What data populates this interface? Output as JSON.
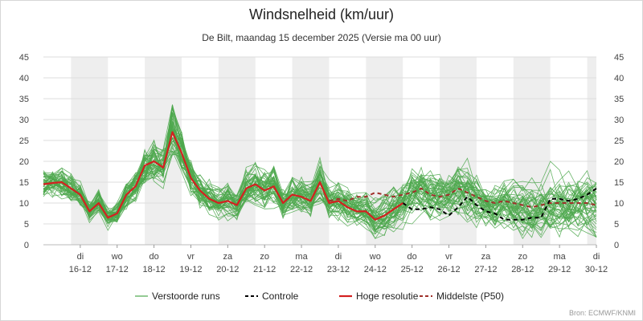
{
  "chart_data": {
    "type": "line",
    "title": "Windsnelheid (km/uur)",
    "subtitle": "De Bilt, maandag 15 december 2025 (Versie ma 00 uur)",
    "credit": "Bron: ECMWF/KNMI",
    "ylim": [
      0,
      45
    ],
    "yticks": [
      0,
      5,
      10,
      15,
      20,
      25,
      30,
      35,
      40,
      45
    ],
    "grid": true,
    "legend_position": "bottom",
    "x_day_labels": [
      {
        "day": "di",
        "date": "16-12",
        "x": 1
      },
      {
        "day": "wo",
        "date": "17-12",
        "x": 2
      },
      {
        "day": "do",
        "date": "18-12",
        "x": 3
      },
      {
        "day": "vr",
        "date": "19-12",
        "x": 4
      },
      {
        "day": "za",
        "date": "20-12",
        "x": 5
      },
      {
        "day": "zo",
        "date": "21-12",
        "x": 6
      },
      {
        "day": "ma",
        "date": "22-12",
        "x": 7
      },
      {
        "day": "di",
        "date": "23-12",
        "x": 8
      },
      {
        "day": "wo",
        "date": "24-12",
        "x": 9
      },
      {
        "day": "do",
        "date": "25-12",
        "x": 10
      },
      {
        "day": "vr",
        "date": "26-12",
        "x": 11
      },
      {
        "day": "za",
        "date": "27-12",
        "x": 12
      },
      {
        "day": "zo",
        "date": "28-12",
        "x": 13
      },
      {
        "day": "ma",
        "date": "29-12",
        "x": 14
      },
      {
        "day": "di",
        "date": "30-12",
        "x": 15
      }
    ],
    "shaded_days": [
      [
        0.75,
        1.75
      ],
      [
        2.75,
        3.75
      ],
      [
        4.75,
        5.75
      ],
      [
        6.75,
        7.75
      ],
      [
        8.75,
        9.75
      ],
      [
        10.75,
        11.75
      ],
      [
        12.75,
        13.75
      ],
      [
        14.75,
        15.0
      ]
    ],
    "x_start": 0.0,
    "x_end": 15.0,
    "series": [
      {
        "name": "Verstoorde runs",
        "color": "#4ea84e",
        "dash": "none",
        "width": 0.9
      },
      {
        "name": "Controle",
        "color": "#000000",
        "dash": "5,4",
        "width": 2
      },
      {
        "name": "Hoge resolutie",
        "color": "#d42020",
        "dash": "none",
        "width": 2.2
      },
      {
        "name": "Middelste (P50)",
        "color": "#a0302a",
        "dash": "5,4",
        "width": 2
      }
    ],
    "high_resolution": {
      "x": [
        0,
        0.25,
        0.5,
        0.75,
        1,
        1.25,
        1.5,
        1.75,
        2,
        2.25,
        2.5,
        2.75,
        3,
        3.25,
        3.5,
        3.75,
        4,
        4.25,
        4.5,
        4.75,
        5,
        5.25,
        5.5,
        5.75,
        6,
        6.25,
        6.5,
        6.75,
        7,
        7.25,
        7.5,
        7.75,
        8,
        8.25,
        8.5,
        8.75,
        9,
        9.25,
        9.5,
        9.75
      ],
      "y": [
        14.5,
        14.8,
        15,
        13.5,
        12,
        8,
        10,
        6.5,
        7.5,
        12,
        14,
        19,
        20,
        18.5,
        27,
        22,
        16,
        13,
        11,
        10,
        10.5,
        9.5,
        13.5,
        14.5,
        13,
        14,
        10,
        12,
        11.5,
        10.5,
        15,
        10,
        10.5,
        9,
        8,
        8,
        6,
        7,
        8.5,
        10
      ]
    },
    "control": {
      "x": [
        9.75,
        10,
        10.25,
        10.5,
        10.75,
        11,
        11.25,
        11.5,
        11.75,
        12,
        12.25,
        12.5,
        12.75,
        13,
        13.25,
        13.5,
        13.75,
        14,
        14.25,
        14.5,
        14.75,
        15
      ],
      "y": [
        10,
        8.5,
        8.5,
        9,
        8.5,
        7,
        9,
        11.5,
        9.5,
        8,
        7.5,
        6,
        6,
        6,
        6.5,
        6.5,
        11,
        11,
        10.5,
        11,
        12,
        13.5
      ]
    },
    "median": {
      "x": [
        7.75,
        8,
        8.25,
        8.5,
        8.75,
        9,
        9.25,
        9.5,
        9.75,
        10,
        10.25,
        10.5,
        10.75,
        11,
        11.25,
        11.5,
        11.75,
        12,
        12.25,
        12.5,
        12.75,
        13,
        13.25,
        13.5,
        13.75,
        14,
        14.25,
        14.5,
        14.75,
        15
      ],
      "y": [
        10.5,
        11,
        10.5,
        11.5,
        11.5,
        12.5,
        12,
        11.5,
        12,
        12.5,
        13.5,
        12,
        11.5,
        12,
        13.5,
        12.5,
        11.5,
        10.5,
        10,
        10.5,
        10,
        9.5,
        9,
        9.5,
        10,
        10,
        10,
        10,
        10,
        9.5
      ]
    }
  }
}
